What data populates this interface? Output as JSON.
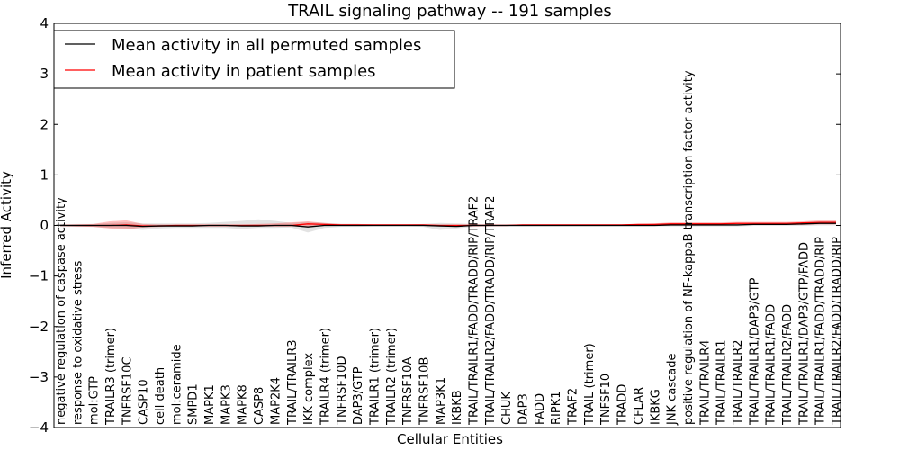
{
  "chart_data": {
    "type": "line",
    "title": "TRAIL signaling pathway -- 191 samples",
    "xlabel": "Cellular Entities",
    "ylabel": "Inferred Activity",
    "ylim": [
      -4,
      4
    ],
    "yticks": [
      -4,
      -3,
      -2,
      -1,
      0,
      1,
      2,
      3,
      4
    ],
    "ytick_labels": [
      "−4",
      "−3",
      "−2",
      "−1",
      "0",
      "1",
      "2",
      "3",
      "4"
    ],
    "grid": false,
    "legend_position": "top-left",
    "categories": [
      "negative regulation of caspase activity",
      "response to oxidative stress",
      "mol:GTP",
      "TRAILR3 (trimer)",
      "TNFRSF10C",
      "CASP10",
      "cell death",
      "mol:ceramide",
      "SMPD1",
      "MAPK1",
      "MAPK3",
      "MAPK8",
      "CASP8",
      "MAP2K4",
      "TRAIL/TRAILR3",
      "IKK complex",
      "TRAILR4 (trimer)",
      "TNFRSF10D",
      "DAP3/GTP",
      "TRAILR1 (trimer)",
      "TRAILR2 (trimer)",
      "TNFRSF10A",
      "TNFRSF10B",
      "MAP3K1",
      "IKBKB",
      "TRAIL/TRAILR1/FADD/TRADD/RIP/TRAF2",
      "TRAIL/TRAILR2/FADD/TRADD/RIP/TRAF2",
      "CHUK",
      "DAP3",
      "FADD",
      "RIPK1",
      "TRAF2",
      "TRAIL (trimer)",
      "TNFSF10",
      "TRADD",
      "CFLAR",
      "IKBKG",
      "JNK cascade",
      "positive regulation of NF-kappaB transcription factor activity",
      "TRAIL/TRAILR4",
      "TRAIL/TRAILR1",
      "TRAIL/TRAILR2",
      "TRAIL/TRAILR1/DAP3/GTP",
      "TRAIL/TRAILR1/FADD",
      "TRAIL/TRAILR2/FADD",
      "TRAIL/TRAILR1/DAP3/GTP/FADD",
      "TRAIL/TRAILR1/FADD/TRADD/RIP",
      "TRAIL/TRAILR2/FADD/TRADD/RIP"
    ],
    "series": [
      {
        "name": "Mean activity in all permuted samples",
        "color": "#000000",
        "values": [
          0,
          0,
          0,
          0,
          0,
          -0.02,
          -0.01,
          -0.01,
          -0.01,
          0,
          0,
          -0.01,
          -0.01,
          0,
          0,
          -0.03,
          0,
          0,
          0,
          0,
          0,
          0,
          0,
          -0.01,
          -0.02,
          0,
          0,
          0,
          0,
          0,
          0,
          0,
          0,
          0,
          0,
          0,
          0,
          0.01,
          0.01,
          0.01,
          0.01,
          0.01,
          0.02,
          0.02,
          0.02,
          0.03,
          0.04,
          0.04
        ],
        "band_low": [
          -0.02,
          -0.03,
          -0.03,
          -0.05,
          -0.06,
          -0.09,
          -0.06,
          -0.05,
          -0.05,
          -0.05,
          -0.05,
          -0.07,
          -0.05,
          -0.05,
          -0.04,
          -0.14,
          -0.05,
          -0.03,
          -0.03,
          -0.02,
          -0.02,
          -0.02,
          -0.03,
          -0.09,
          -0.06,
          -0.03,
          -0.02,
          -0.02,
          -0.02,
          -0.02,
          -0.02,
          -0.02,
          -0.02,
          -0.02,
          -0.02,
          -0.02,
          -0.02,
          -0.02,
          -0.02,
          -0.02,
          -0.02,
          -0.02,
          -0.01,
          -0.01,
          -0.01,
          -0.01,
          0,
          0
        ],
        "band_high": [
          0.02,
          0.03,
          0.03,
          0.05,
          0.06,
          0.04,
          0.04,
          0.04,
          0.04,
          0.05,
          0.07,
          0.09,
          0.12,
          0.09,
          0.05,
          0.07,
          0.05,
          0.03,
          0.03,
          0.02,
          0.02,
          0.02,
          0.03,
          0.05,
          0.04,
          0.03,
          0.02,
          0.02,
          0.02,
          0.02,
          0.02,
          0.02,
          0.02,
          0.02,
          0.02,
          0.02,
          0.02,
          0.04,
          0.04,
          0.04,
          0.04,
          0.04,
          0.05,
          0.05,
          0.05,
          0.06,
          0.08,
          0.08
        ]
      },
      {
        "name": "Mean activity in patient samples",
        "color": "#ff0000",
        "values": [
          0,
          0,
          0,
          0,
          0.01,
          -0.01,
          -0.01,
          0,
          0,
          0,
          0,
          0,
          0,
          0,
          0,
          0.03,
          0.02,
          0.01,
          0.01,
          0.01,
          0.01,
          0.01,
          0.01,
          0,
          0,
          0,
          0,
          0,
          0.01,
          0.01,
          0.01,
          0.01,
          0.01,
          0.01,
          0.01,
          0.02,
          0.02,
          0.03,
          0.03,
          0.03,
          0.03,
          0.04,
          0.04,
          0.04,
          0.04,
          0.05,
          0.06,
          0.06
        ],
        "band_low": [
          -0.01,
          -0.02,
          -0.03,
          -0.06,
          -0.08,
          -0.04,
          -0.03,
          -0.02,
          -0.02,
          -0.02,
          -0.02,
          -0.02,
          -0.02,
          -0.02,
          -0.02,
          -0.02,
          -0.01,
          -0.01,
          -0.01,
          -0.01,
          -0.01,
          -0.01,
          -0.01,
          -0.02,
          -0.02,
          -0.02,
          -0.01,
          -0.01,
          0,
          0,
          0,
          0,
          0,
          0,
          0,
          0,
          0,
          0,
          0,
          0,
          0,
          0.01,
          0.01,
          0.01,
          0.01,
          0.01,
          0.02,
          0.02
        ],
        "band_high": [
          0.01,
          0.02,
          0.03,
          0.08,
          0.1,
          0.03,
          0.02,
          0.02,
          0.02,
          0.02,
          0.02,
          0.02,
          0.03,
          0.04,
          0.06,
          0.08,
          0.05,
          0.03,
          0.03,
          0.02,
          0.02,
          0.02,
          0.02,
          0.02,
          0.02,
          0.02,
          0.02,
          0.02,
          0.02,
          0.02,
          0.02,
          0.02,
          0.02,
          0.02,
          0.02,
          0.03,
          0.04,
          0.06,
          0.06,
          0.06,
          0.06,
          0.07,
          0.07,
          0.07,
          0.07,
          0.08,
          0.1,
          0.1
        ]
      }
    ]
  }
}
